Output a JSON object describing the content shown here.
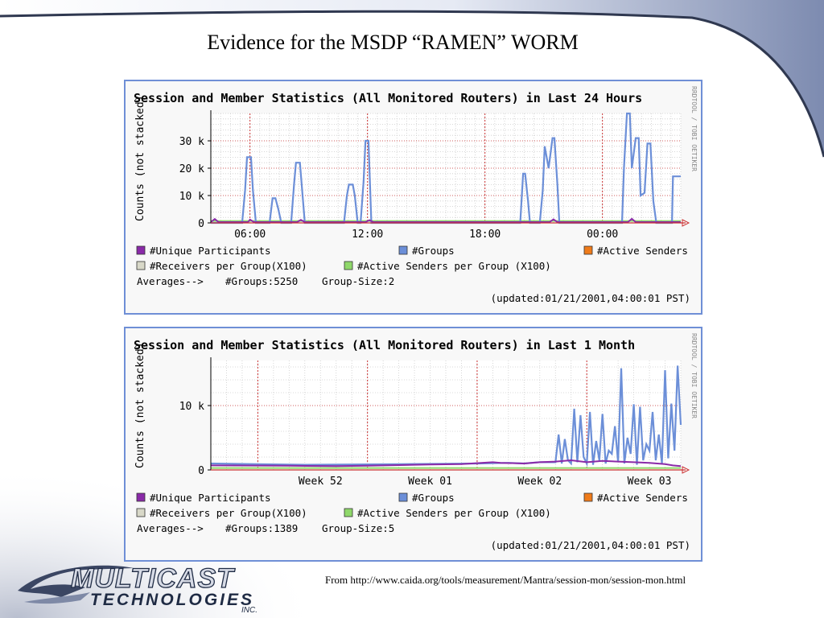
{
  "slide": {
    "title": "Evidence for the MSDP “RAMEN” WORM",
    "source": "From http://www.caida.org/tools/measurement/Mantra/session-mon/session-mon.html",
    "logo": {
      "line1": "MULTICAST",
      "line2": "TECHNOLOGIES",
      "line3": "INC."
    }
  },
  "colors": {
    "frame": "#6f8fd6",
    "groups": "#6c8fd8",
    "unique": "#8a2aa8",
    "active_senders": "#ef7b1a",
    "receivers": "#d8d8c8",
    "active_senders_per_group": "#8fd86a",
    "grid": "#cccccc",
    "vgrid_major": "#cc3333"
  },
  "chart_data": [
    {
      "type": "line",
      "title": "Session and Member Statistics (All Monitored Routers) in Last 24 Hours",
      "ylabel": "Counts (not stacked)",
      "side_label": "RRDTOOL / TOBI OETIKER",
      "ylim": [
        0,
        40000
      ],
      "yticks": [
        {
          "v": 0,
          "label": "0"
        },
        {
          "v": 10000,
          "label": "10 k"
        },
        {
          "v": 20000,
          "label": "20 k"
        },
        {
          "v": 30000,
          "label": "30 k"
        }
      ],
      "xlim": [
        0,
        24
      ],
      "xticks": [
        {
          "v": 2,
          "label": "06:00"
        },
        {
          "v": 8,
          "label": "12:00"
        },
        {
          "v": 14,
          "label": "18:00"
        },
        {
          "v": 20,
          "label": "00:00"
        }
      ],
      "x_minor_step": 0.5,
      "x_major": [
        2,
        8,
        14,
        20
      ],
      "series": [
        {
          "name": "#Groups",
          "color_key": "groups",
          "x": [
            0,
            1.6,
            1.75,
            1.85,
            2.05,
            2.15,
            2.3,
            3.0,
            3.15,
            3.3,
            3.45,
            3.6,
            4.1,
            4.25,
            4.35,
            4.55,
            4.65,
            4.8,
            6.8,
            6.95,
            7.05,
            7.25,
            7.35,
            7.5,
            7.65,
            7.8,
            7.9,
            8.05,
            8.2,
            15.8,
            15.95,
            16.05,
            16.2,
            16.3,
            16.8,
            16.95,
            17.05,
            17.25,
            17.45,
            17.55,
            17.7,
            17.8,
            17.9,
            18.0,
            18.15,
            18.35,
            18.5,
            21.0,
            21.1,
            21.25,
            21.4,
            21.5,
            21.7,
            21.85,
            21.95,
            22.15,
            22.3,
            22.45,
            22.6,
            22.75,
            23.0,
            23.2,
            23.45,
            23.55,
            23.6,
            24.0
          ],
          "y": [
            0,
            0,
            12000,
            24000,
            24000,
            12000,
            0,
            0,
            9000,
            9000,
            5000,
            0,
            0,
            14000,
            22000,
            22000,
            13000,
            0,
            0,
            10000,
            14000,
            14000,
            10000,
            0,
            0,
            15000,
            30000,
            30000,
            0,
            0,
            18000,
            18000,
            8000,
            0,
            0,
            12000,
            28000,
            20000,
            31000,
            31000,
            14000,
            0,
            0,
            0,
            0,
            0,
            0,
            0,
            20000,
            40000,
            40000,
            20000,
            31000,
            31000,
            10000,
            11000,
            29000,
            29000,
            8000,
            0,
            0,
            0,
            0,
            0,
            17000,
            17000
          ]
        },
        {
          "name": "#Unique Participants",
          "color_key": "unique",
          "x": [
            0,
            0.2,
            0.4,
            1.9,
            2.0,
            2.2,
            4.4,
            4.6,
            4.8,
            7.9,
            8.1,
            8.3,
            17.3,
            17.5,
            17.7,
            21.3,
            21.5,
            21.7,
            24
          ],
          "y": [
            300,
            1400,
            300,
            300,
            1200,
            300,
            300,
            1100,
            300,
            300,
            1000,
            300,
            300,
            1300,
            300,
            300,
            1500,
            300,
            300
          ]
        },
        {
          "name": "#Active Senders per Group (X100)",
          "color_key": "active_senders_per_group",
          "x": [
            0,
            24
          ],
          "y": [
            700,
            700
          ]
        }
      ],
      "legend": [
        {
          "label": "#Unique Participants",
          "color_key": "unique"
        },
        {
          "label": "#Groups",
          "color_key": "groups"
        },
        {
          "label": "#Active Senders",
          "color_key": "active_senders"
        },
        {
          "label": "#Receivers per Group(X100)",
          "color_key": "receivers"
        },
        {
          "label": "#Active Senders per Group (X100)",
          "color_key": "active_senders_per_group"
        }
      ],
      "averages": {
        "prefix": "Averages-->",
        "groups": "#Groups:5250",
        "group_size": "Group-Size:2"
      },
      "updated": "(updated:01/21/2001,04:00:01 PST)"
    },
    {
      "type": "line",
      "title": "Session and Member Statistics (All Monitored Routers) in Last 1 Month",
      "ylabel": "Counts (not stacked)",
      "side_label": "RRDTOOL / TOBI OETIKER",
      "ylim": [
        0,
        17000
      ],
      "yticks": [
        {
          "v": 0,
          "label": "0"
        },
        {
          "v": 10000,
          "label": "10 k"
        }
      ],
      "xlim": [
        0,
        30
      ],
      "xticks": [
        {
          "v": 7,
          "label": "Week 52"
        },
        {
          "v": 14,
          "label": "Week 01"
        },
        {
          "v": 21,
          "label": "Week 02"
        },
        {
          "v": 28,
          "label": "Week 03"
        }
      ],
      "x_minor_step": 1,
      "x_major": [
        3,
        10,
        17,
        24
      ],
      "series": [
        {
          "name": "#Groups",
          "color_key": "groups",
          "x": [
            0,
            3,
            6,
            9,
            12,
            15,
            17,
            19,
            20,
            21,
            22,
            22.2,
            22.4,
            22.6,
            22.8,
            23.0,
            23.2,
            23.4,
            23.6,
            23.8,
            24.0,
            24.2,
            24.4,
            24.6,
            24.8,
            25.0,
            25.2,
            25.4,
            25.6,
            25.8,
            26.0,
            26.2,
            26.4,
            26.6,
            26.8,
            27.0,
            27.2,
            27.4,
            27.6,
            27.8,
            28.0,
            28.2,
            28.4,
            28.6,
            28.8,
            29.0,
            29.2,
            29.4,
            29.6,
            29.8,
            30.0
          ],
          "y": [
            1000,
            900,
            800,
            850,
            900,
            950,
            1000,
            1100,
            1000,
            1200,
            1200,
            5500,
            1000,
            4800,
            1500,
            1000,
            9500,
            1200,
            8500,
            2000,
            1000,
            9000,
            800,
            4500,
            1500,
            8700,
            1000,
            3000,
            2500,
            6800,
            1200,
            15800,
            1000,
            5000,
            2500,
            10200,
            800,
            9800,
            1500,
            4000,
            3000,
            9000,
            1500,
            5500,
            1000,
            15500,
            1800,
            10300,
            3000,
            16200,
            7000
          ]
        },
        {
          "name": "#Unique Participants",
          "color_key": "unique",
          "x": [
            0,
            5,
            8,
            10,
            14,
            16,
            18,
            18.5,
            20,
            21,
            22,
            23,
            24,
            25,
            26,
            27,
            28,
            29,
            29.5,
            30
          ],
          "y": [
            700,
            650,
            600,
            650,
            850,
            900,
            1200,
            1100,
            1000,
            1200,
            1300,
            1500,
            1200,
            1400,
            1300,
            1200,
            1100,
            900,
            700,
            600
          ]
        },
        {
          "name": "#Active Senders per Group (X100)",
          "color_key": "active_senders_per_group",
          "x": [
            0,
            30
          ],
          "y": [
            300,
            300
          ]
        }
      ],
      "legend": [
        {
          "label": "#Unique Participants",
          "color_key": "unique"
        },
        {
          "label": "#Groups",
          "color_key": "groups"
        },
        {
          "label": "#Active Senders",
          "color_key": "active_senders"
        },
        {
          "label": "#Receivers per Group(X100)",
          "color_key": "receivers"
        },
        {
          "label": "#Active Senders per Group (X100)",
          "color_key": "active_senders_per_group"
        }
      ],
      "averages": {
        "prefix": "Averages-->",
        "groups": "#Groups:1389",
        "group_size": "Group-Size:5"
      },
      "updated": "(updated:01/21/2001,04:00:01 PST)"
    }
  ]
}
